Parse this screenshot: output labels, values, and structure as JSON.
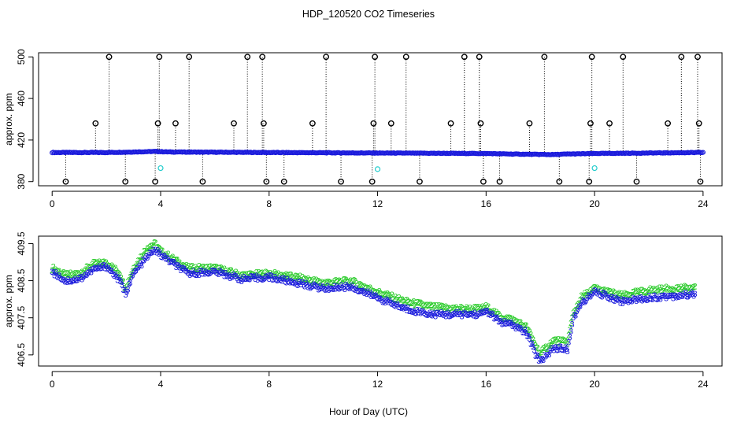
{
  "title": "HDP_120520  CO2 Timeseries",
  "xlabel": "Hour of Day (UTC)",
  "colors": {
    "frame": "#000000",
    "series_primary": "#1a1adc",
    "series_secondary": "#2ecc2e",
    "outlier_marker": "#000000",
    "flagged_marker": "#22cccc"
  },
  "chart_data": [
    {
      "type": "scatter",
      "panel": "top",
      "ylabel": "approx. ppm",
      "xlim": [
        -0.5,
        24.7
      ],
      "ylim": [
        376,
        504
      ],
      "xticks": [
        0,
        4,
        8,
        12,
        16,
        20,
        24
      ],
      "yticks": [
        380,
        420,
        460,
        500
      ],
      "grid": false,
      "series": [
        {
          "marker": "circle",
          "baseline": [
            [
              0,
              408
            ],
            [
              2,
              408
            ],
            [
              3,
              408.5
            ],
            [
              3.8,
              409
            ],
            [
              4.3,
              408.5
            ],
            [
              8,
              408
            ],
            [
              12,
              407.5
            ],
            [
              16,
              407
            ],
            [
              17,
              406.5
            ],
            [
              18.5,
              406
            ],
            [
              19,
              406.5
            ],
            [
              20,
              407
            ],
            [
              22,
              407.5
            ],
            [
              24,
              408
            ]
          ],
          "spikes": [
            {
              "x": 0.5,
              "y": 380
            },
            {
              "x": 1.6,
              "y": 436
            },
            {
              "x": 2.1,
              "y": 500
            },
            {
              "x": 2.7,
              "y": 380
            },
            {
              "x": 3.8,
              "y": 380
            },
            {
              "x": 3.9,
              "y": 436
            },
            {
              "x": 3.95,
              "y": 500
            },
            {
              "x": 4.55,
              "y": 436
            },
            {
              "x": 5.05,
              "y": 500
            },
            {
              "x": 5.55,
              "y": 380
            },
            {
              "x": 6.7,
              "y": 436
            },
            {
              "x": 7.2,
              "y": 500
            },
            {
              "x": 7.75,
              "y": 500
            },
            {
              "x": 7.8,
              "y": 436
            },
            {
              "x": 7.9,
              "y": 380
            },
            {
              "x": 8.55,
              "y": 380
            },
            {
              "x": 9.6,
              "y": 436
            },
            {
              "x": 10.1,
              "y": 500
            },
            {
              "x": 10.65,
              "y": 380
            },
            {
              "x": 11.8,
              "y": 380
            },
            {
              "x": 11.85,
              "y": 436
            },
            {
              "x": 11.9,
              "y": 500
            },
            {
              "x": 12.5,
              "y": 436
            },
            {
              "x": 13.05,
              "y": 500
            },
            {
              "x": 13.55,
              "y": 380
            },
            {
              "x": 14.7,
              "y": 436
            },
            {
              "x": 15.2,
              "y": 500
            },
            {
              "x": 15.75,
              "y": 500
            },
            {
              "x": 15.8,
              "y": 436
            },
            {
              "x": 15.9,
              "y": 380
            },
            {
              "x": 16.5,
              "y": 380
            },
            {
              "x": 17.6,
              "y": 436
            },
            {
              "x": 18.15,
              "y": 500
            },
            {
              "x": 18.7,
              "y": 380
            },
            {
              "x": 19.8,
              "y": 380
            },
            {
              "x": 19.85,
              "y": 436
            },
            {
              "x": 19.9,
              "y": 500
            },
            {
              "x": 20.55,
              "y": 436
            },
            {
              "x": 21.05,
              "y": 500
            },
            {
              "x": 21.55,
              "y": 380
            },
            {
              "x": 22.7,
              "y": 436
            },
            {
              "x": 23.2,
              "y": 500
            },
            {
              "x": 23.8,
              "y": 500
            },
            {
              "x": 23.85,
              "y": 436
            },
            {
              "x": 23.9,
              "y": 380
            }
          ],
          "flagged": [
            {
              "x": 4.0,
              "y": 393
            },
            {
              "x": 12.0,
              "y": 392
            },
            {
              "x": 20.0,
              "y": 393
            }
          ]
        }
      ]
    },
    {
      "type": "scatter",
      "panel": "bottom",
      "ylabel": "approx. ppm",
      "xlim": [
        -0.5,
        24.7
      ],
      "ylim": [
        406.2,
        409.7
      ],
      "xticks": [
        0,
        4,
        8,
        12,
        16,
        20,
        24
      ],
      "yticks": [
        406.5,
        407.5,
        408.5,
        409.5
      ],
      "grid": false,
      "series": [
        {
          "marker": "3",
          "values": [
            [
              0,
              408.75
            ],
            [
              0.5,
              408.5
            ],
            [
              1,
              408.55
            ],
            [
              1.5,
              408.8
            ],
            [
              2,
              408.9
            ],
            [
              2.5,
              408.5
            ],
            [
              2.7,
              408.15
            ],
            [
              3,
              408.7
            ],
            [
              3.5,
              409.15
            ],
            [
              3.8,
              409.35
            ],
            [
              4,
              409.2
            ],
            [
              5,
              408.7
            ],
            [
              6,
              408.75
            ],
            [
              7,
              408.55
            ],
            [
              8,
              408.6
            ],
            [
              9,
              408.45
            ],
            [
              10,
              408.3
            ],
            [
              11,
              408.35
            ],
            [
              12,
              408.05
            ],
            [
              13,
              407.75
            ],
            [
              14,
              407.6
            ],
            [
              15,
              407.6
            ],
            [
              15.8,
              407.6
            ],
            [
              16,
              407.7
            ],
            [
              16.5,
              407.4
            ],
            [
              17,
              407.3
            ],
            [
              17.5,
              407.1
            ],
            [
              17.8,
              406.55
            ],
            [
              18,
              406.35
            ],
            [
              18.5,
              406.7
            ],
            [
              19,
              406.65
            ],
            [
              19.2,
              407.45
            ],
            [
              19.5,
              407.9
            ],
            [
              20,
              408.2
            ],
            [
              21,
              407.95
            ],
            [
              22,
              408.05
            ],
            [
              23,
              408.1
            ],
            [
              23.7,
              408.15
            ]
          ]
        },
        {
          "marker": "2",
          "values": [
            [
              0,
              408.85
            ],
            [
              0.5,
              408.65
            ],
            [
              1,
              408.7
            ],
            [
              1.5,
              408.95
            ],
            [
              2,
              409.0
            ],
            [
              2.5,
              408.7
            ],
            [
              2.7,
              408.3
            ],
            [
              3,
              408.85
            ],
            [
              3.5,
              409.4
            ],
            [
              3.8,
              409.5
            ],
            [
              4,
              409.3
            ],
            [
              5,
              408.85
            ],
            [
              6,
              408.85
            ],
            [
              7,
              408.65
            ],
            [
              8,
              408.7
            ],
            [
              9,
              408.6
            ],
            [
              10,
              408.45
            ],
            [
              11,
              408.5
            ],
            [
              12,
              408.2
            ],
            [
              13,
              407.95
            ],
            [
              14,
              407.8
            ],
            [
              15,
              407.75
            ],
            [
              15.8,
              407.75
            ],
            [
              16,
              407.8
            ],
            [
              16.5,
              407.55
            ],
            [
              17,
              407.45
            ],
            [
              17.5,
              407.25
            ],
            [
              17.8,
              406.8
            ],
            [
              18,
              406.55
            ],
            [
              18.5,
              406.9
            ],
            [
              19,
              406.85
            ],
            [
              19.2,
              407.6
            ],
            [
              19.5,
              408.05
            ],
            [
              20,
              408.3
            ],
            [
              21,
              408.1
            ],
            [
              22,
              408.25
            ],
            [
              23,
              408.3
            ],
            [
              23.7,
              408.3
            ]
          ]
        }
      ]
    }
  ]
}
